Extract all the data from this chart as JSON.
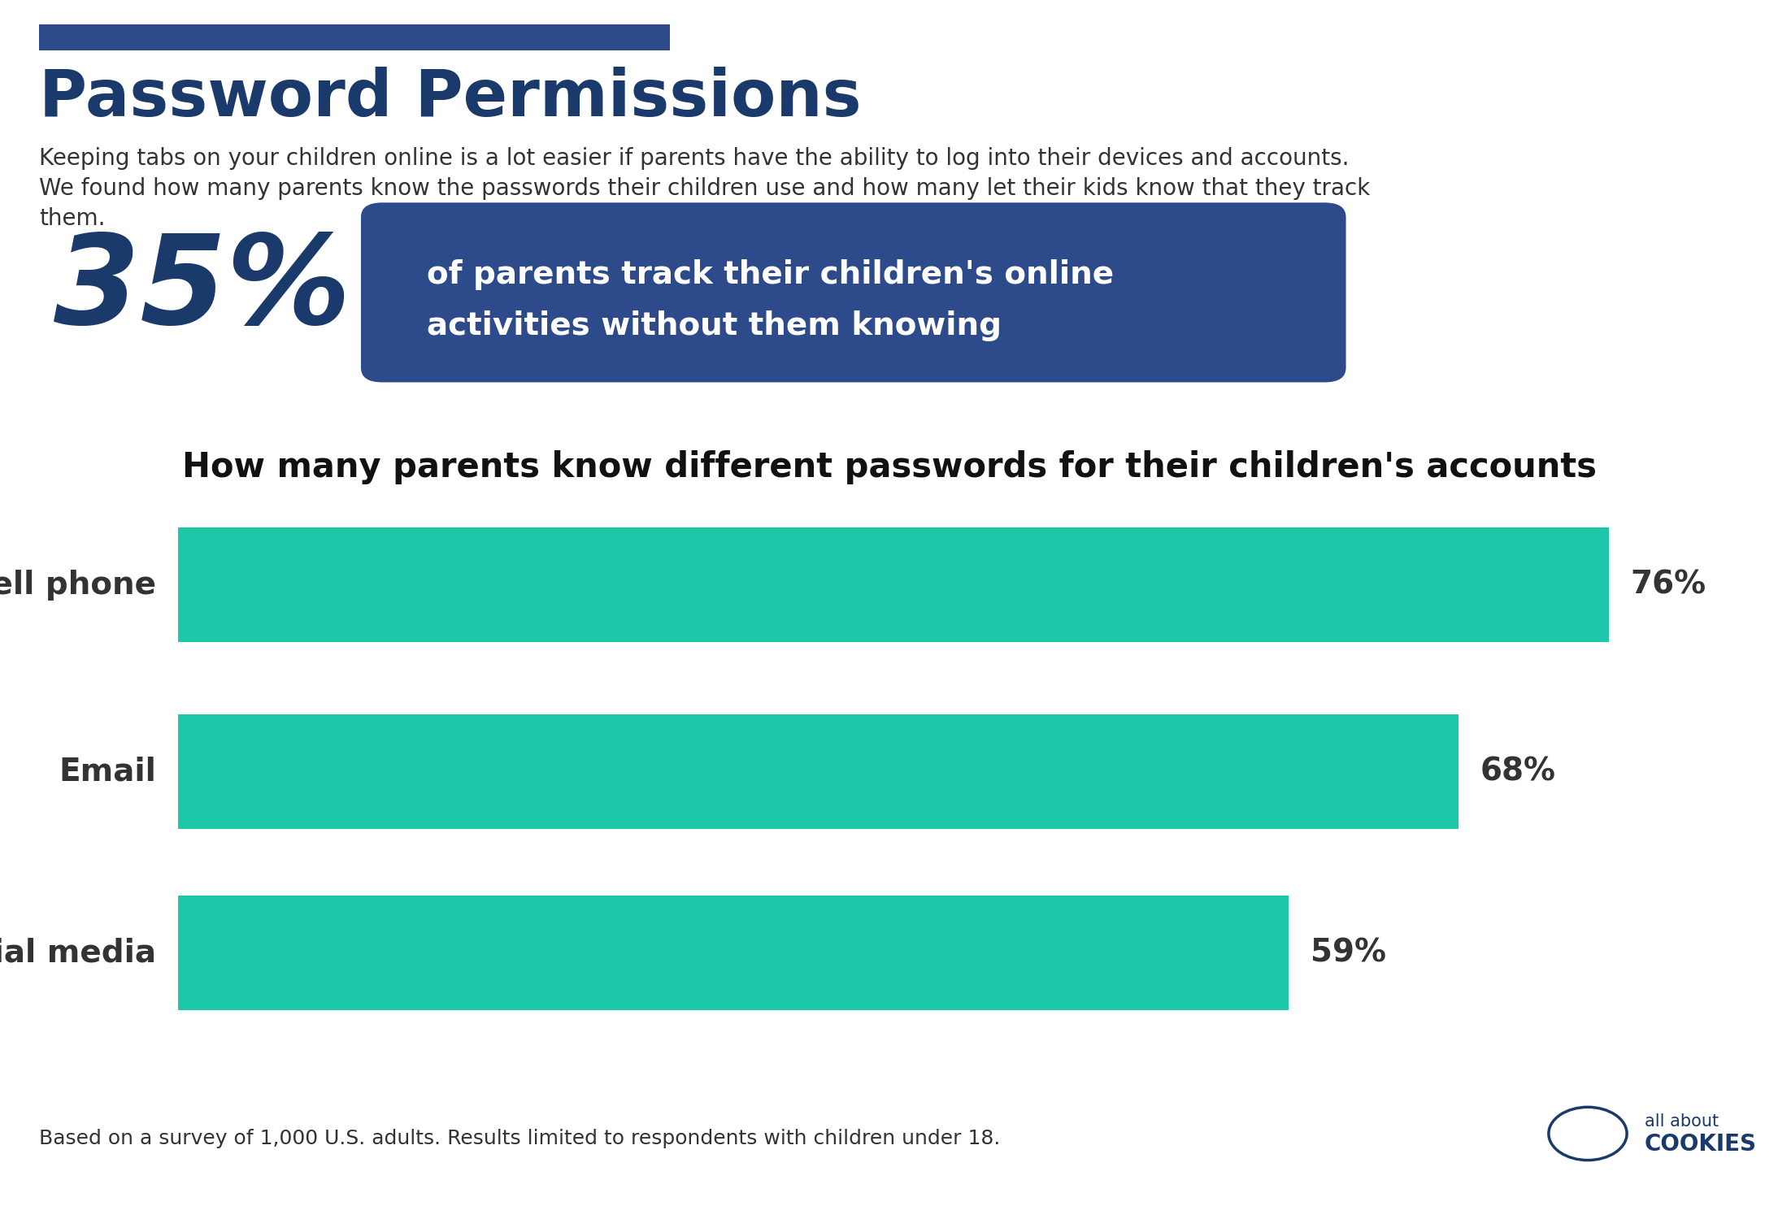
{
  "title": "Password Permissions",
  "title_color": "#1a3a6b",
  "top_bar_color": "#2d4a8a",
  "subtitle_line1": "Keeping tabs on your children online is a lot easier if parents have the ability to log into their devices and accounts.",
  "subtitle_line2": "We found how many parents know the passwords their children use and how many let their kids know that they track",
  "subtitle_line3": "them.",
  "subtitle_color": "#333333",
  "big_stat": "35%",
  "big_stat_color": "#1a3a6b",
  "stat_box_text_line1": "of parents track their children's online",
  "stat_box_text_line2": "activities without them knowing",
  "stat_box_bg": "#2d4a8a",
  "stat_box_text_color": "#ffffff",
  "chart_title": "How many parents know different passwords for their children's accounts",
  "chart_title_color": "#111111",
  "categories": [
    "Cell phone",
    "Email",
    "Social media"
  ],
  "values": [
    76,
    68,
    59
  ],
  "bar_color": "#1dc8a8",
  "label_color": "#333333",
  "footnote": "Based on a survey of 1,000 U.S. adults. Results limited to respondents with children under 18.",
  "footnote_color": "#333333",
  "logo_text1": "all about",
  "logo_text2": "COOKIES",
  "logo_color": "#1a3a6b",
  "bg_color": "#ffffff"
}
